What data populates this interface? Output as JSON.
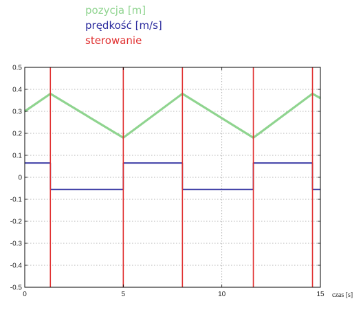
{
  "chart_data": {
    "type": "line",
    "xlabel": "czas [s]",
    "ylabel": "",
    "xlim": [
      0,
      15
    ],
    "ylim": [
      -0.5,
      0.5
    ],
    "grid": true,
    "legend_position": "top-left, above plot",
    "x_ticks": [
      "0",
      "5",
      "10",
      "15"
    ],
    "y_ticks": [
      "0.5",
      "0.4",
      "0.3",
      "0.2",
      "0.1",
      "0",
      "-0.1",
      "-0.2",
      "-0.3",
      "-0.4",
      "-0.5"
    ],
    "series": [
      {
        "name": "pozycja [m]",
        "color": "#8fd48f",
        "x": [
          0,
          1.3,
          5.0,
          8.0,
          11.6,
          14.6,
          15.0
        ],
        "y": [
          0.3,
          0.38,
          0.18,
          0.38,
          0.18,
          0.38,
          0.36
        ]
      },
      {
        "name": "prędkość [m/s]",
        "color": "#2c2c9e",
        "x": [
          0,
          1.3,
          1.3,
          5.0,
          5.0,
          8.0,
          8.0,
          11.6,
          11.6,
          14.6,
          14.6,
          15.0
        ],
        "y": [
          0.065,
          0.065,
          -0.055,
          -0.055,
          0.065,
          0.065,
          -0.055,
          -0.055,
          0.065,
          0.065,
          -0.055,
          -0.055
        ]
      },
      {
        "name": "sterowanie",
        "color": "#e03030",
        "type": "impulse",
        "x": [
          1.3,
          5.0,
          8.0,
          11.6,
          14.6
        ],
        "y": [
          0.5,
          0.5,
          0.5,
          0.5,
          0.5
        ]
      }
    ]
  }
}
